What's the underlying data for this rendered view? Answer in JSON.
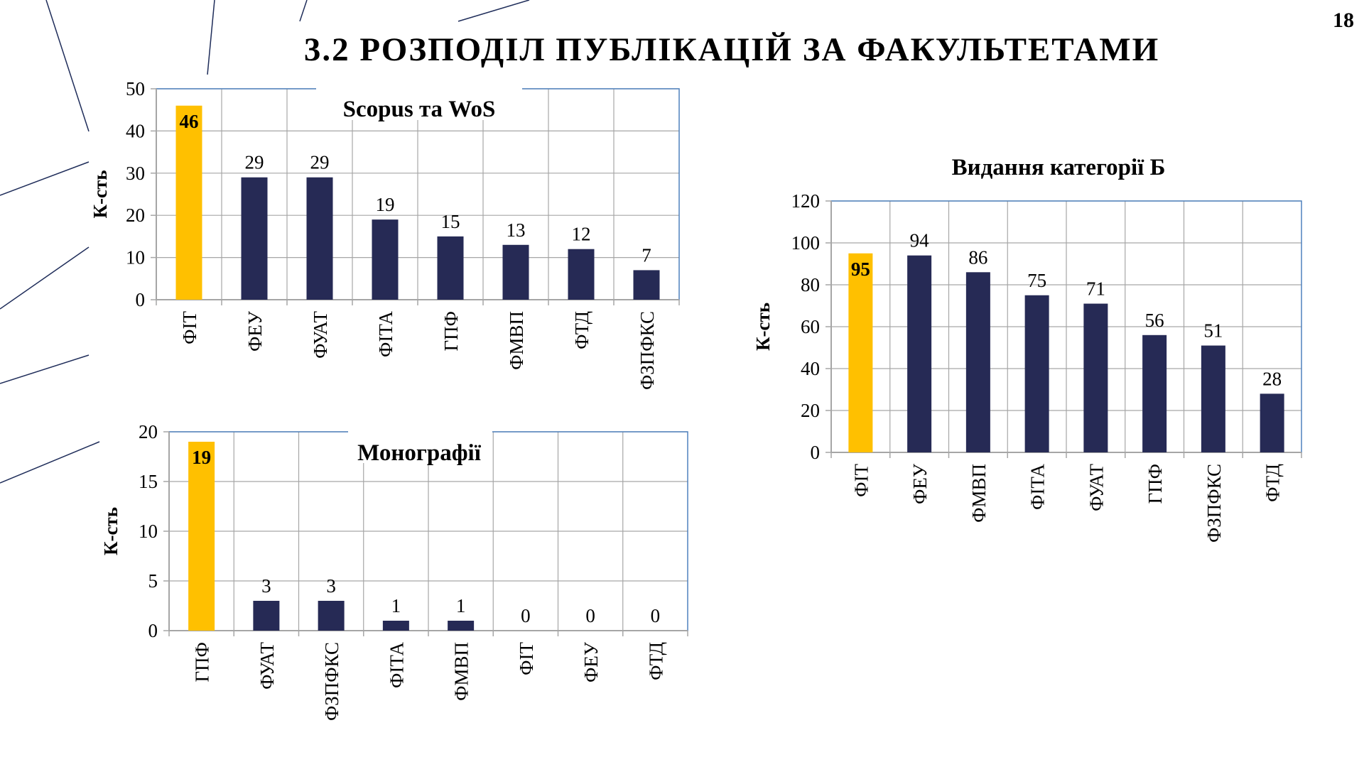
{
  "slide": {
    "title": "3.2 РОЗПОДІЛ ПУБЛІКАЦІЙ ЗА ФАКУЛЬТЕТАМИ",
    "page_number": "18"
  },
  "colors": {
    "highlight": "#FFC000",
    "bar": "#262A55",
    "grid": "#A6A6A6",
    "frame": "#4F81BD",
    "decor_line": "#1F2D5A"
  },
  "chart_data": [
    {
      "id": "scopus",
      "type": "bar",
      "title": "Scopus та WoS",
      "ylabel": "К-сть",
      "xlabel": "",
      "categories": [
        "ФІТ",
        "ФЕУ",
        "ФУАТ",
        "ФІТА",
        "ГПФ",
        "ФМВП",
        "ФТД",
        "ФЗПФКС"
      ],
      "values": [
        46,
        29,
        29,
        19,
        15,
        13,
        12,
        7
      ],
      "ylim": [
        0,
        50
      ],
      "yticks": [
        0,
        10,
        20,
        30,
        40,
        50
      ],
      "highlight_index": 0,
      "grid": true,
      "legend": "none"
    },
    {
      "id": "monographs",
      "type": "bar",
      "title": "Монографії",
      "ylabel": "К-сть",
      "xlabel": "",
      "categories": [
        "ГПФ",
        "ФУАТ",
        "ФЗПФКС",
        "ФІТА",
        "ФМВП",
        "ФІТ",
        "ФЕУ",
        "ФТД"
      ],
      "values": [
        19,
        3,
        3,
        1,
        1,
        0,
        0,
        0
      ],
      "ylim": [
        0,
        20
      ],
      "yticks": [
        0,
        5,
        10,
        15,
        20
      ],
      "highlight_index": 0,
      "grid": true,
      "legend": "none"
    },
    {
      "id": "category-b",
      "type": "bar",
      "title": "Видання категорії Б",
      "ylabel": "К-сть",
      "xlabel": "",
      "categories": [
        "ФІТ",
        "ФЕУ",
        "ФМВП",
        "ФІТА",
        "ФУАТ",
        "ГПФ",
        "ФЗПФКС",
        "ФТД"
      ],
      "values": [
        95,
        94,
        86,
        75,
        71,
        56,
        51,
        28
      ],
      "ylim": [
        0,
        120
      ],
      "yticks": [
        0,
        20,
        40,
        60,
        80,
        100,
        120
      ],
      "highlight_index": 0,
      "grid": true,
      "legend": "none"
    }
  ]
}
